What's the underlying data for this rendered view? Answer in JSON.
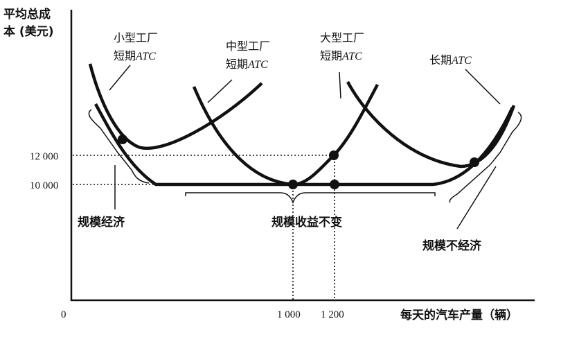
{
  "chart_data": {
    "type": "line",
    "ylabel_lines": [
      "平均总成",
      "本 (美元)"
    ],
    "xlabel": "每天的汽车产量（辆）",
    "origin_label": "0",
    "x_ticks": [
      {
        "value": 1000,
        "label": "1 000"
      },
      {
        "value": 1200,
        "label": "1 200"
      }
    ],
    "y_ticks": [
      {
        "value": 12000,
        "label": "12 000"
      },
      {
        "value": 10000,
        "label": "10 000"
      }
    ],
    "series": [
      {
        "name_lines": [
          "小型工厂",
          "短期ATC"
        ]
      },
      {
        "name_lines": [
          "中型工厂",
          "短期ATC"
        ]
      },
      {
        "name_lines": [
          "大型工厂",
          "短期ATC"
        ]
      },
      {
        "name_lines": [
          "长期ATC"
        ]
      }
    ],
    "regions": [
      {
        "label": "规模经济"
      },
      {
        "label": "规模收益不变"
      },
      {
        "label": "规模不经济"
      }
    ]
  }
}
